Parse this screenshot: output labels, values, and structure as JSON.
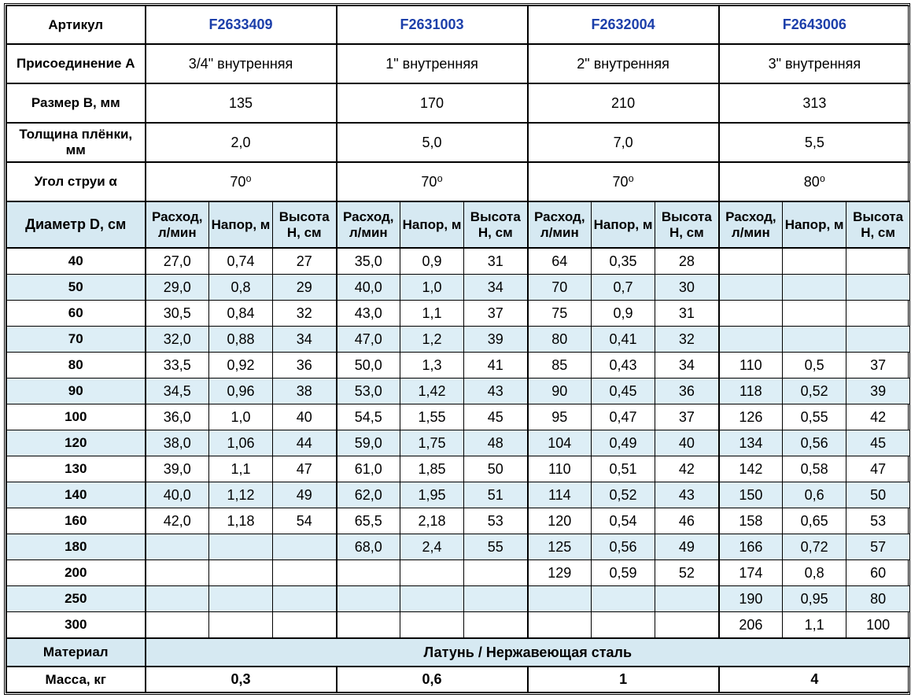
{
  "colors": {
    "article_blue": "#1c3faa",
    "header_fill": "#d6e9f2",
    "zebra_fill": "#ddeef6",
    "border": "#000000"
  },
  "spec_rows": [
    {
      "label": "Артикул",
      "values": [
        "F2633409",
        "F2631003",
        "F2632004",
        "F2643006"
      ]
    },
    {
      "label": "Присоединение A",
      "values": [
        "3/4\" внутренняя",
        "1\" внутренняя",
        "2\" внутренняя",
        "3\" внутренняя"
      ]
    },
    {
      "label": "Размер B, мм",
      "values": [
        "135",
        "170",
        "210",
        "313"
      ]
    },
    {
      "label": "Толщина плёнки, мм",
      "values": [
        "2,0",
        "5,0",
        "7,0",
        "5,5"
      ]
    },
    {
      "label": "Угол струи α",
      "values": [
        "70⁰",
        "70⁰",
        "70⁰",
        "80⁰"
      ]
    }
  ],
  "perf": {
    "diameter_label": "Диаметр D, см",
    "groups": 4,
    "group_columns": [
      "Расход, л/мин",
      "Напор, м",
      "Высота H, см"
    ],
    "rows": [
      {
        "diameter": "40",
        "cells": [
          "27,0",
          "0,74",
          "27",
          "35,0",
          "0,9",
          "31",
          "64",
          "0,35",
          "28",
          "",
          "",
          ""
        ]
      },
      {
        "diameter": "50",
        "cells": [
          "29,0",
          "0,8",
          "29",
          "40,0",
          "1,0",
          "34",
          "70",
          "0,7",
          "30",
          "",
          "",
          ""
        ]
      },
      {
        "diameter": "60",
        "cells": [
          "30,5",
          "0,84",
          "32",
          "43,0",
          "1,1",
          "37",
          "75",
          "0,9",
          "31",
          "",
          "",
          ""
        ]
      },
      {
        "diameter": "70",
        "cells": [
          "32,0",
          "0,88",
          "34",
          "47,0",
          "1,2",
          "39",
          "80",
          "0,41",
          "32",
          "",
          "",
          ""
        ]
      },
      {
        "diameter": "80",
        "cells": [
          "33,5",
          "0,92",
          "36",
          "50,0",
          "1,3",
          "41",
          "85",
          "0,43",
          "34",
          "110",
          "0,5",
          "37"
        ]
      },
      {
        "diameter": "90",
        "cells": [
          "34,5",
          "0,96",
          "38",
          "53,0",
          "1,42",
          "43",
          "90",
          "0,45",
          "36",
          "118",
          "0,52",
          "39"
        ]
      },
      {
        "diameter": "100",
        "cells": [
          "36,0",
          "1,0",
          "40",
          "54,5",
          "1,55",
          "45",
          "95",
          "0,47",
          "37",
          "126",
          "0,55",
          "42"
        ]
      },
      {
        "diameter": "120",
        "cells": [
          "38,0",
          "1,06",
          "44",
          "59,0",
          "1,75",
          "48",
          "104",
          "0,49",
          "40",
          "134",
          "0,56",
          "45"
        ]
      },
      {
        "diameter": "130",
        "cells": [
          "39,0",
          "1,1",
          "47",
          "61,0",
          "1,85",
          "50",
          "110",
          "0,51",
          "42",
          "142",
          "0,58",
          "47"
        ]
      },
      {
        "diameter": "140",
        "cells": [
          "40,0",
          "1,12",
          "49",
          "62,0",
          "1,95",
          "51",
          "114",
          "0,52",
          "43",
          "150",
          "0,6",
          "50"
        ]
      },
      {
        "diameter": "160",
        "cells": [
          "42,0",
          "1,18",
          "54",
          "65,5",
          "2,18",
          "53",
          "120",
          "0,54",
          "46",
          "158",
          "0,65",
          "53"
        ]
      },
      {
        "diameter": "180",
        "cells": [
          "",
          "",
          "",
          "68,0",
          "2,4",
          "55",
          "125",
          "0,56",
          "49",
          "166",
          "0,72",
          "57"
        ]
      },
      {
        "diameter": "200",
        "cells": [
          "",
          "",
          "",
          "",
          "",
          "",
          "129",
          "0,59",
          "52",
          "174",
          "0,8",
          "60"
        ]
      },
      {
        "diameter": "250",
        "cells": [
          "",
          "",
          "",
          "",
          "",
          "",
          "",
          "",
          "",
          "190",
          "0,95",
          "80"
        ]
      },
      {
        "diameter": "300",
        "cells": [
          "",
          "",
          "",
          "",
          "",
          "",
          "",
          "",
          "",
          "206",
          "1,1",
          "100"
        ]
      }
    ]
  },
  "material": {
    "label": "Материал",
    "value": "Латунь / Нержавеющая сталь"
  },
  "mass": {
    "label": "Масса, кг",
    "values": [
      "0,3",
      "0,6",
      "1",
      "4"
    ]
  }
}
